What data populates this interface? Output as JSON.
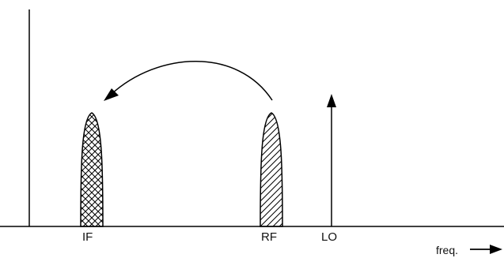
{
  "labels": {
    "if": "IF",
    "rf": "RF",
    "lo": "LO",
    "freq": "freq."
  },
  "colors": {
    "stroke": "#000000",
    "background": "#ffffff"
  },
  "icons": {
    "freq_arrow": "right-arrow-icon",
    "translation_arrow": "curved-arrow-icon",
    "lo_arrow": "up-arrow-icon"
  }
}
